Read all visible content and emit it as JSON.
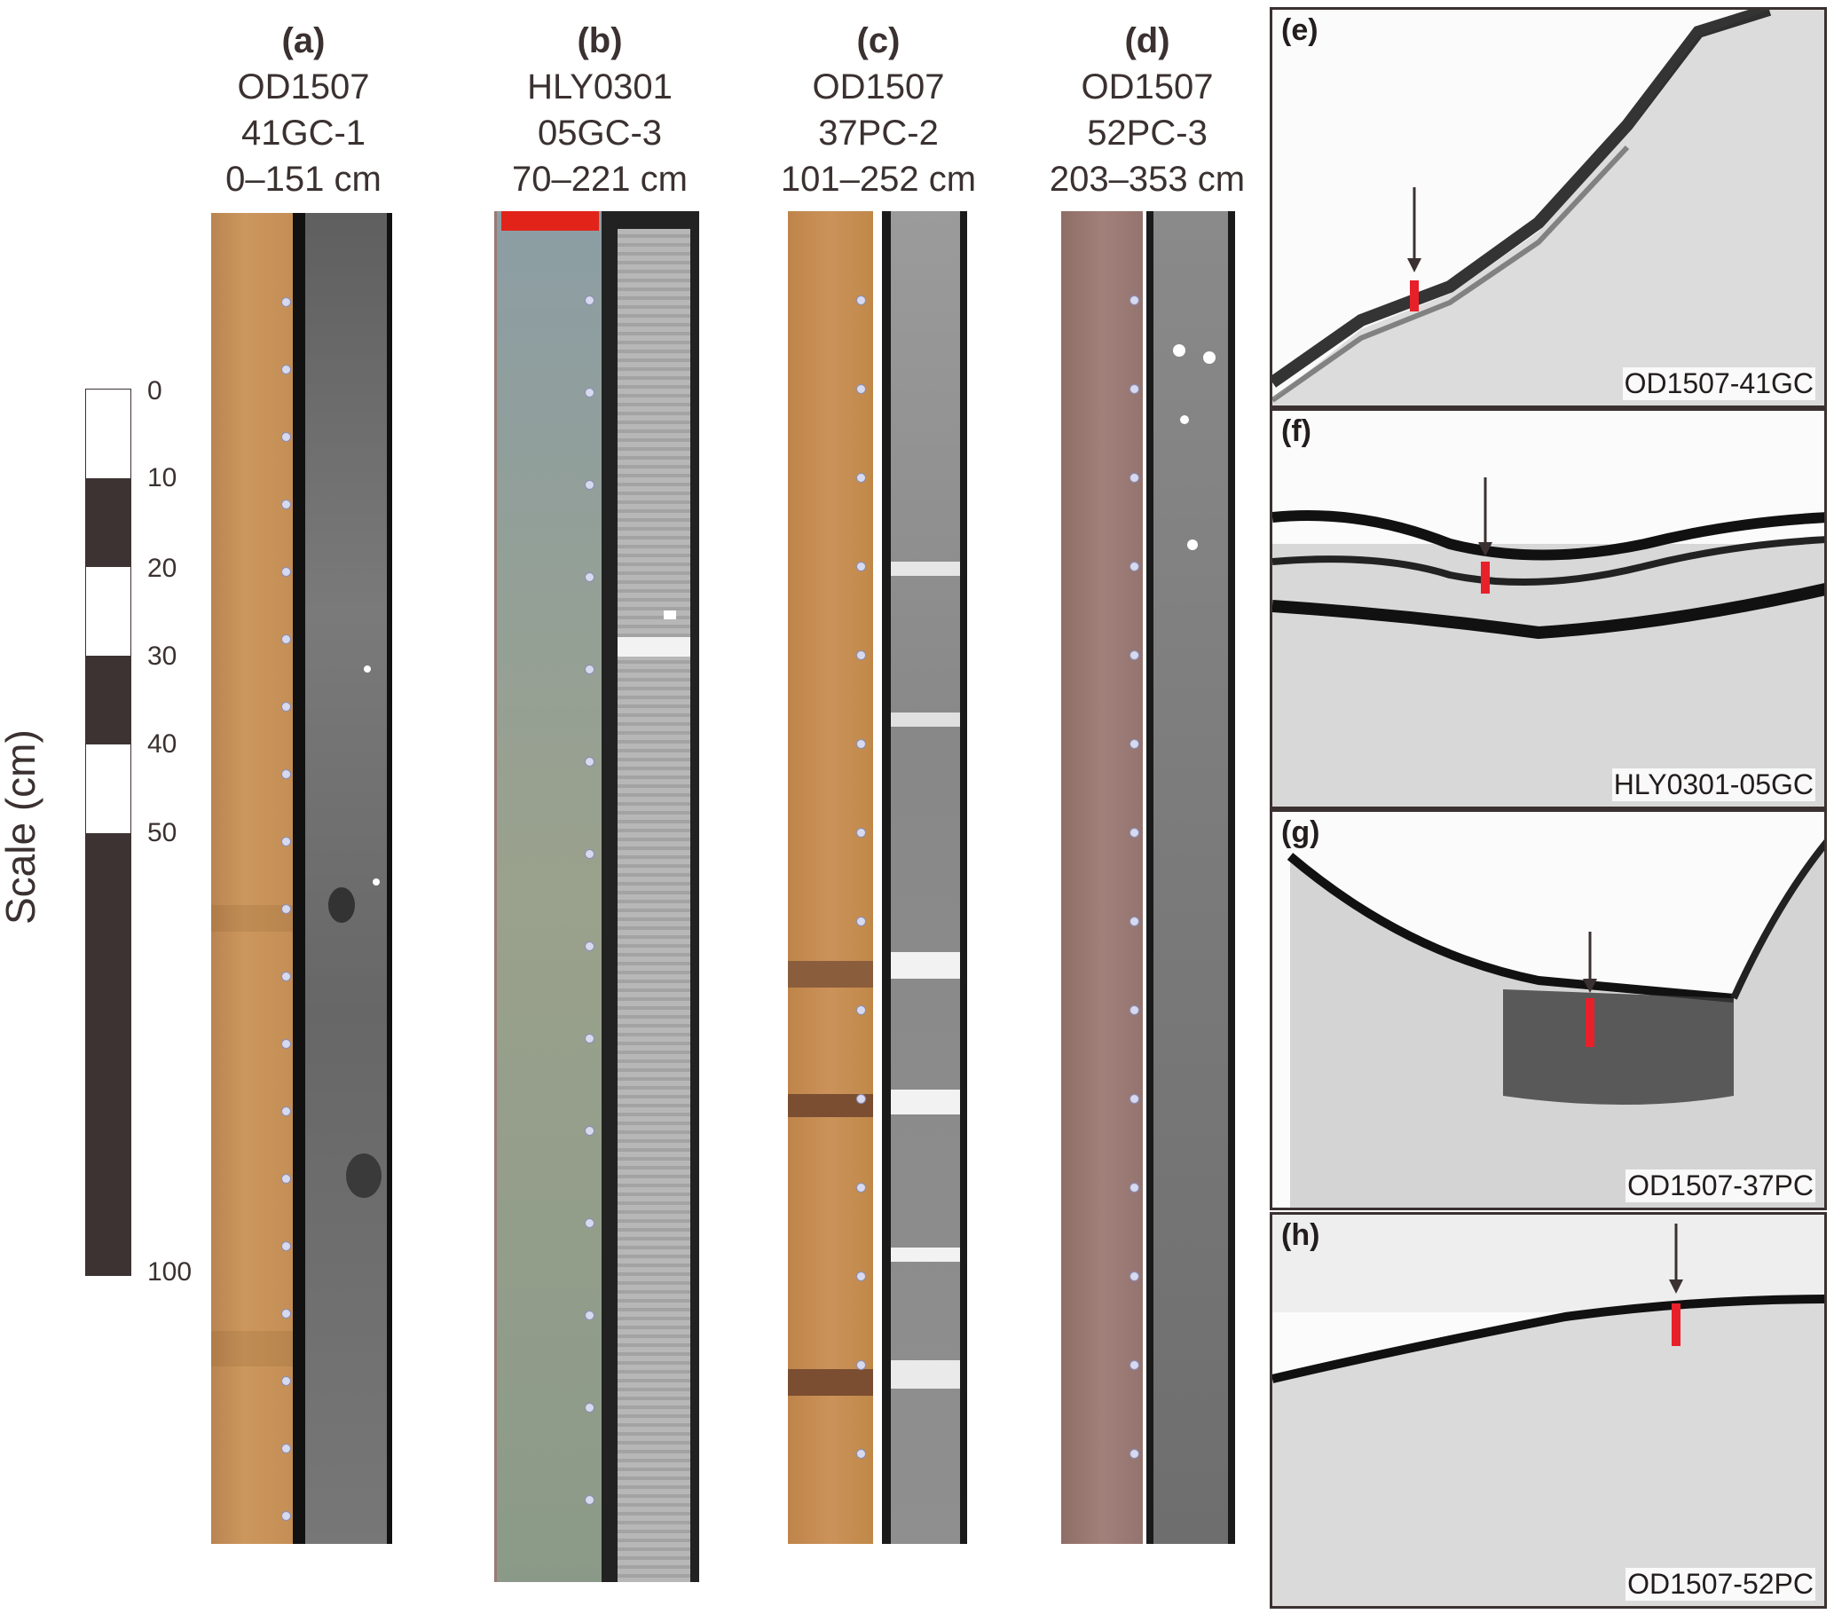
{
  "cores": [
    {
      "letter": "(a)",
      "cruise": "OD1507",
      "core": "41GC-1",
      "range": "0–151 cm",
      "photo_color": "#c8925a",
      "ct_color": "#6e6e6e"
    },
    {
      "letter": "(b)",
      "cruise": "HLY0301",
      "core": "05GC-3",
      "range": "70–221 cm",
      "photo_color": "#8e9a85",
      "ct_color": "#a9a9a9"
    },
    {
      "letter": "(c)",
      "cruise": "OD1507",
      "core": "37PC-2",
      "range": "101–252 cm",
      "photo_color": "#c58a4e",
      "ct_color": "#8f8f8f"
    },
    {
      "letter": "(d)",
      "cruise": "OD1507",
      "core": "52PC-3",
      "range": "203–353 cm",
      "photo_color": "#9c7a72",
      "ct_color": "#7d7d7d"
    }
  ],
  "scale": {
    "title": "Scale (cm)",
    "ticks": [
      "0",
      "10",
      "20",
      "30",
      "40",
      "50",
      "100"
    ],
    "dark_color": "#3d3333"
  },
  "profiles": [
    {
      "letter": "(e)",
      "name": "OD1507-41GC"
    },
    {
      "letter": "(f)",
      "name": "HLY0301-05GC"
    },
    {
      "letter": "(g)",
      "name": "OD1507-37PC"
    },
    {
      "letter": "(h)",
      "name": "OD1507-52PC"
    }
  ],
  "marker_color": "#e8202a"
}
